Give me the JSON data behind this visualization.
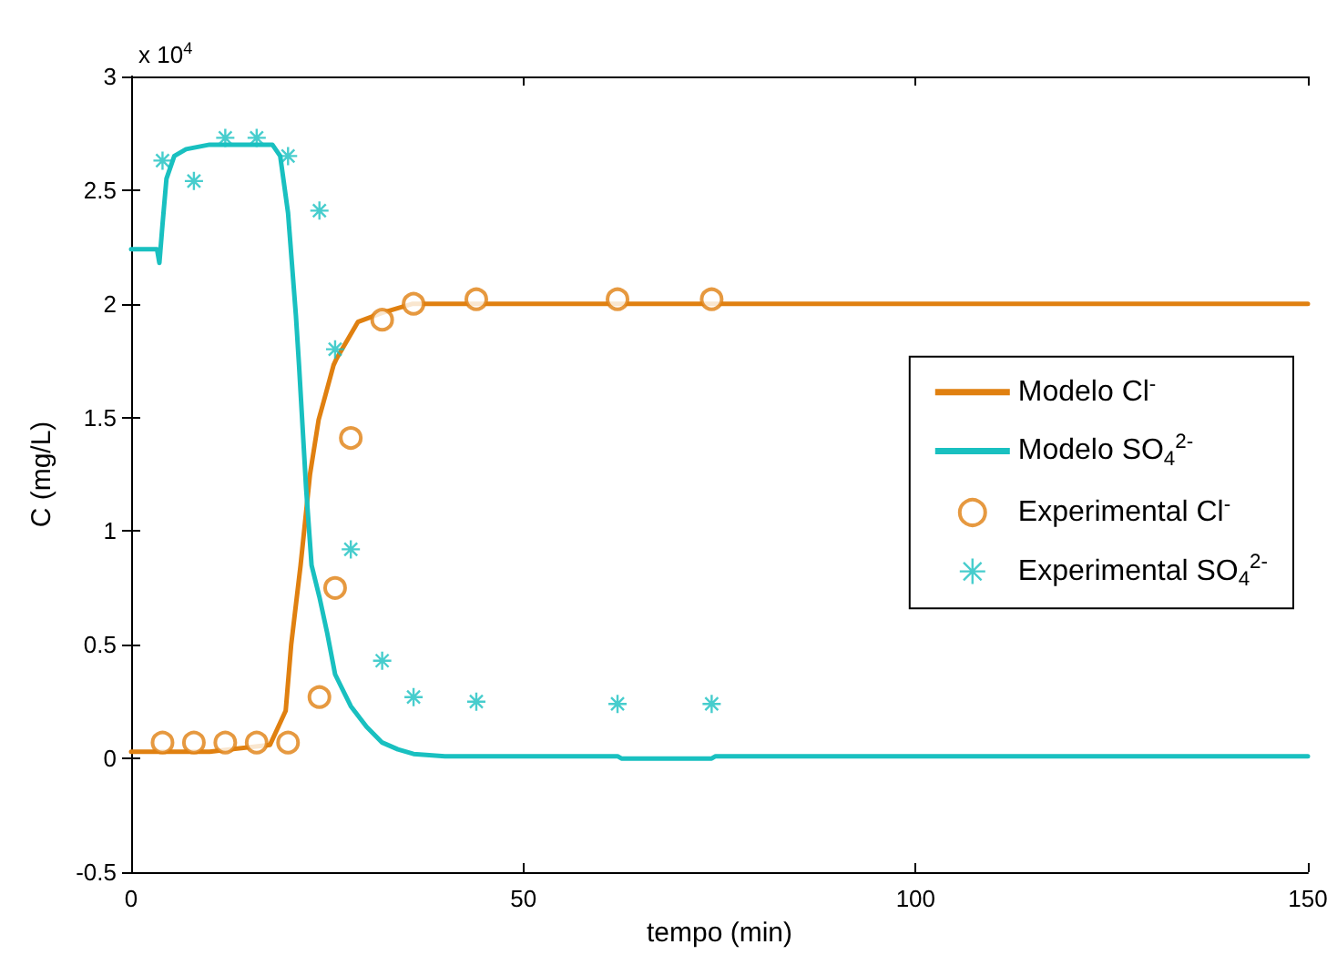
{
  "chart_data": {
    "type": "line",
    "xlabel": "tempo (min)",
    "ylabel": "C (mg/L)",
    "annotations": [
      "x 10$^{4}$"
    ],
    "xlim": [
      0,
      150
    ],
    "xticks": [
      0,
      50,
      100,
      150
    ],
    "ylim": [
      -0.5,
      3
    ],
    "yticks": [
      -0.5,
      0,
      0.5,
      1,
      1.5,
      2,
      2.5,
      3
    ],
    "grid": false,
    "legend": "right",
    "series": [
      {
        "name": "Modelo Cl$^{-}$",
        "marker": "none",
        "color": "#e08010",
        "x": [
          0,
          10,
          17.7,
          19.7,
          20.4,
          21.6,
          22.8,
          23.9,
          24.7,
          25.8,
          26.2,
          28.9,
          32,
          35.9,
          40,
          150
        ],
        "values": [
          0.03,
          0.03,
          0.06,
          0.21,
          0.5,
          0.85,
          1.25,
          1.49,
          1.59,
          1.73,
          1.76,
          1.92,
          1.96,
          2.0,
          2.0,
          2.0
        ]
      },
      {
        "name": "Modelo SO$_{4}$$^{2-}$",
        "marker": "none",
        "color": "#19c0c0",
        "x": [
          0,
          3.3,
          3.6,
          4,
          4.5,
          5.5,
          7,
          10,
          18,
          19,
          20,
          21,
          21.4,
          22.3,
          23,
          24,
          25,
          26,
          28,
          30,
          32,
          34,
          36,
          40,
          62,
          62.5,
          74,
          74.5,
          150
        ],
        "values": [
          2.24,
          2.24,
          2.18,
          2.35,
          2.55,
          2.65,
          2.68,
          2.7,
          2.7,
          2.65,
          2.4,
          1.95,
          1.73,
          1.19,
          0.85,
          0.71,
          0.55,
          0.37,
          0.23,
          0.14,
          0.07,
          0.04,
          0.02,
          0.01,
          0.01,
          0.0,
          0.0,
          0.01,
          0.01
        ]
      },
      {
        "name": "Experimental Cl$^{-}$",
        "type": "scatter",
        "marker": "circle",
        "color": "#e08010",
        "x": [
          4,
          8,
          12,
          16,
          20,
          24,
          26,
          28,
          32,
          36,
          44,
          62,
          74
        ],
        "values": [
          0.07,
          0.07,
          0.07,
          0.07,
          0.07,
          0.27,
          0.75,
          1.41,
          1.93,
          2.0,
          2.02,
          2.02,
          2.02
        ]
      },
      {
        "name": "Experimental SO$_{4}$$^{2-}$",
        "type": "scatter",
        "marker": "cross",
        "color": "#19c0c0",
        "x": [
          4,
          8,
          12,
          16,
          20,
          24,
          26,
          28,
          32,
          36,
          44,
          62,
          74
        ],
        "values": [
          2.63,
          2.54,
          2.73,
          2.73,
          2.65,
          2.41,
          1.8,
          0.92,
          0.43,
          0.27,
          0.25,
          0.24,
          0.24
        ]
      }
    ]
  }
}
